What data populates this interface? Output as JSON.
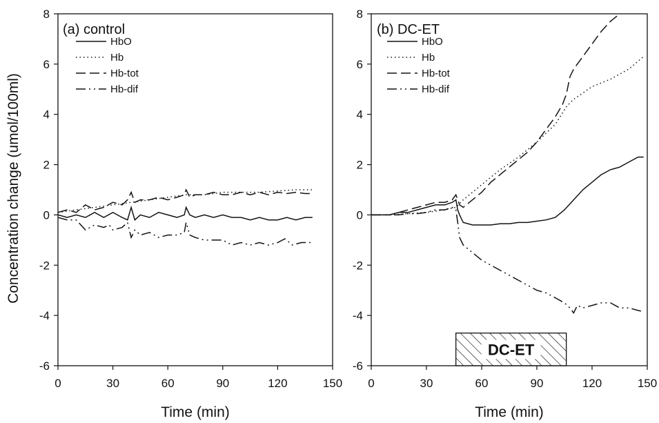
{
  "y_axis_label": "Concentration change (umol/100ml)",
  "panels": [
    {
      "id": "a",
      "title": "(a) control",
      "xlabel": "Time (min)",
      "xlim": [
        0,
        150
      ],
      "ylim": [
        -6,
        8
      ],
      "xticks": [
        0,
        30,
        60,
        90,
        120,
        150
      ],
      "yticks": [
        -6,
        -4,
        -2,
        0,
        2,
        4,
        6,
        8
      ],
      "legend": [
        "HbO",
        "Hb",
        "Hb-tot",
        "Hb-dif"
      ]
    },
    {
      "id": "b",
      "title": "(b) DC-ET",
      "xlabel": "Time (min)",
      "xlim": [
        0,
        150
      ],
      "ylim": [
        -6,
        8
      ],
      "xticks": [
        0,
        30,
        60,
        90,
        120,
        150
      ],
      "yticks": [
        -6,
        -4,
        -2,
        0,
        2,
        4,
        6,
        8
      ],
      "legend": [
        "HbO",
        "Hb",
        "Hb-tot",
        "Hb-dif"
      ],
      "stimulus": {
        "label": "DC-ET",
        "start": 46,
        "end": 106
      }
    }
  ],
  "chart_data": [
    {
      "type": "line",
      "title": "(a) control",
      "xlabel": "Time (min)",
      "ylabel": "Concentration change (umol/100ml)",
      "xlim": [
        0,
        150
      ],
      "ylim": [
        -6,
        8
      ],
      "grid": false,
      "legend_position": "top-left",
      "series": [
        {
          "name": "HbO",
          "style": "solid",
          "points": [
            [
              0,
              0.0
            ],
            [
              5,
              -0.1
            ],
            [
              10,
              0.0
            ],
            [
              15,
              -0.1
            ],
            [
              20,
              0.1
            ],
            [
              25,
              -0.1
            ],
            [
              30,
              0.1
            ],
            [
              35,
              -0.1
            ],
            [
              38,
              -0.2
            ],
            [
              40,
              0.3
            ],
            [
              42,
              -0.2
            ],
            [
              45,
              0.0
            ],
            [
              50,
              -0.1
            ],
            [
              55,
              0.1
            ],
            [
              60,
              0.0
            ],
            [
              65,
              -0.1
            ],
            [
              69,
              0.0
            ],
            [
              70,
              0.3
            ],
            [
              72,
              0.0
            ],
            [
              75,
              -0.1
            ],
            [
              80,
              0.0
            ],
            [
              85,
              -0.1
            ],
            [
              90,
              0.0
            ],
            [
              95,
              -0.1
            ],
            [
              100,
              -0.1
            ],
            [
              105,
              -0.2
            ],
            [
              110,
              -0.1
            ],
            [
              115,
              -0.2
            ],
            [
              120,
              -0.2
            ],
            [
              125,
              -0.1
            ],
            [
              130,
              -0.2
            ],
            [
              135,
              -0.1
            ],
            [
              139,
              -0.1
            ]
          ]
        },
        {
          "name": "Hb",
          "style": "dotted",
          "points": [
            [
              0,
              0.1
            ],
            [
              10,
              0.2
            ],
            [
              20,
              0.3
            ],
            [
              30,
              0.4
            ],
            [
              40,
              0.5
            ],
            [
              50,
              0.6
            ],
            [
              60,
              0.7
            ],
            [
              70,
              0.8
            ],
            [
              80,
              0.8
            ],
            [
              90,
              0.9
            ],
            [
              100,
              0.9
            ],
            [
              110,
              0.9
            ],
            [
              120,
              0.95
            ],
            [
              130,
              1.0
            ],
            [
              139,
              1.0
            ]
          ]
        },
        {
          "name": "Hb-tot",
          "style": "dashed",
          "points": [
            [
              0,
              0.1
            ],
            [
              5,
              0.2
            ],
            [
              10,
              0.1
            ],
            [
              15,
              0.4
            ],
            [
              20,
              0.2
            ],
            [
              25,
              0.3
            ],
            [
              30,
              0.5
            ],
            [
              35,
              0.4
            ],
            [
              38,
              0.6
            ],
            [
              40,
              0.9
            ],
            [
              42,
              0.5
            ],
            [
              45,
              0.6
            ],
            [
              50,
              0.6
            ],
            [
              55,
              0.7
            ],
            [
              60,
              0.6
            ],
            [
              65,
              0.7
            ],
            [
              69,
              0.8
            ],
            [
              70,
              1.0
            ],
            [
              72,
              0.7
            ],
            [
              75,
              0.8
            ],
            [
              80,
              0.8
            ],
            [
              85,
              0.9
            ],
            [
              90,
              0.8
            ],
            [
              95,
              0.8
            ],
            [
              100,
              0.9
            ],
            [
              105,
              0.8
            ],
            [
              110,
              0.9
            ],
            [
              115,
              0.8
            ],
            [
              120,
              0.9
            ],
            [
              125,
              0.85
            ],
            [
              130,
              0.9
            ],
            [
              135,
              0.85
            ],
            [
              139,
              0.85
            ]
          ]
        },
        {
          "name": "Hb-dif",
          "style": "dashdot",
          "points": [
            [
              0,
              -0.1
            ],
            [
              5,
              -0.2
            ],
            [
              10,
              -0.2
            ],
            [
              15,
              -0.6
            ],
            [
              20,
              -0.4
            ],
            [
              25,
              -0.5
            ],
            [
              28,
              -0.4
            ],
            [
              30,
              -0.6
            ],
            [
              35,
              -0.5
            ],
            [
              38,
              -0.3
            ],
            [
              40,
              -0.9
            ],
            [
              42,
              -0.6
            ],
            [
              45,
              -0.8
            ],
            [
              50,
              -0.7
            ],
            [
              55,
              -0.9
            ],
            [
              60,
              -0.8
            ],
            [
              65,
              -0.8
            ],
            [
              69,
              -0.7
            ],
            [
              70,
              -0.3
            ],
            [
              72,
              -0.8
            ],
            [
              75,
              -0.9
            ],
            [
              80,
              -1.0
            ],
            [
              85,
              -1.0
            ],
            [
              90,
              -1.0
            ],
            [
              95,
              -1.2
            ],
            [
              100,
              -1.1
            ],
            [
              105,
              -1.2
            ],
            [
              110,
              -1.1
            ],
            [
              115,
              -1.2
            ],
            [
              120,
              -1.1
            ],
            [
              124,
              -0.95
            ],
            [
              128,
              -1.2
            ],
            [
              133,
              -1.1
            ],
            [
              139,
              -1.1
            ]
          ]
        }
      ]
    },
    {
      "type": "line",
      "title": "(b) DC-ET",
      "xlabel": "Time (min)",
      "ylabel": "Concentration change (umol/100ml)",
      "xlim": [
        0,
        150
      ],
      "ylim": [
        -6,
        8
      ],
      "grid": false,
      "legend_position": "top-left",
      "annotation": {
        "label": "DC-ET",
        "x_start": 46,
        "x_end": 106
      },
      "series": [
        {
          "name": "HbO",
          "style": "solid",
          "points": [
            [
              0,
              0.0
            ],
            [
              5,
              0.0
            ],
            [
              10,
              0.0
            ],
            [
              15,
              0.1
            ],
            [
              20,
              0.1
            ],
            [
              25,
              0.2
            ],
            [
              30,
              0.3
            ],
            [
              35,
              0.4
            ],
            [
              40,
              0.4
            ],
            [
              44,
              0.5
            ],
            [
              46,
              0.6
            ],
            [
              47,
              0.2
            ],
            [
              48,
              0.0
            ],
            [
              50,
              -0.3
            ],
            [
              55,
              -0.4
            ],
            [
              60,
              -0.4
            ],
            [
              65,
              -0.4
            ],
            [
              70,
              -0.35
            ],
            [
              75,
              -0.35
            ],
            [
              80,
              -0.3
            ],
            [
              85,
              -0.3
            ],
            [
              90,
              -0.25
            ],
            [
              95,
              -0.2
            ],
            [
              100,
              -0.1
            ],
            [
              105,
              0.2
            ],
            [
              110,
              0.6
            ],
            [
              115,
              1.0
            ],
            [
              120,
              1.3
            ],
            [
              125,
              1.6
            ],
            [
              130,
              1.8
            ],
            [
              135,
              1.9
            ],
            [
              140,
              2.1
            ],
            [
              145,
              2.3
            ],
            [
              148,
              2.3
            ]
          ]
        },
        {
          "name": "Hb",
          "style": "dotted",
          "points": [
            [
              0,
              0.0
            ],
            [
              10,
              0.0
            ],
            [
              20,
              0.05
            ],
            [
              30,
              0.1
            ],
            [
              40,
              0.2
            ],
            [
              46,
              0.3
            ],
            [
              50,
              0.6
            ],
            [
              60,
              1.2
            ],
            [
              70,
              1.8
            ],
            [
              80,
              2.3
            ],
            [
              90,
              2.9
            ],
            [
              100,
              3.6
            ],
            [
              106,
              4.3
            ],
            [
              110,
              4.6
            ],
            [
              120,
              5.1
            ],
            [
              130,
              5.4
            ],
            [
              140,
              5.8
            ],
            [
              148,
              6.3
            ]
          ]
        },
        {
          "name": "Hb-tot",
          "style": "dashed",
          "points": [
            [
              0,
              0.0
            ],
            [
              5,
              0.0
            ],
            [
              10,
              0.0
            ],
            [
              15,
              0.1
            ],
            [
              20,
              0.2
            ],
            [
              25,
              0.3
            ],
            [
              30,
              0.4
            ],
            [
              35,
              0.5
            ],
            [
              40,
              0.5
            ],
            [
              44,
              0.6
            ],
            [
              46,
              0.8
            ],
            [
              48,
              0.4
            ],
            [
              50,
              0.3
            ],
            [
              55,
              0.6
            ],
            [
              60,
              0.9
            ],
            [
              65,
              1.3
            ],
            [
              70,
              1.6
            ],
            [
              75,
              1.9
            ],
            [
              80,
              2.2
            ],
            [
              85,
              2.5
            ],
            [
              90,
              2.9
            ],
            [
              95,
              3.4
            ],
            [
              100,
              3.9
            ],
            [
              104,
              4.4
            ],
            [
              106,
              4.8
            ],
            [
              108,
              5.5
            ],
            [
              110,
              5.8
            ],
            [
              115,
              6.3
            ],
            [
              120,
              6.8
            ],
            [
              125,
              7.3
            ],
            [
              130,
              7.7
            ],
            [
              135,
              8.0
            ]
          ]
        },
        {
          "name": "Hb-dif",
          "style": "dashdot",
          "points": [
            [
              0,
              0.0
            ],
            [
              5,
              0.0
            ],
            [
              10,
              0.0
            ],
            [
              15,
              0.0
            ],
            [
              20,
              0.05
            ],
            [
              25,
              0.05
            ],
            [
              30,
              0.1
            ],
            [
              35,
              0.2
            ],
            [
              40,
              0.2
            ],
            [
              44,
              0.3
            ],
            [
              46,
              0.2
            ],
            [
              47,
              -0.3
            ],
            [
              48,
              -0.9
            ],
            [
              50,
              -1.2
            ],
            [
              55,
              -1.5
            ],
            [
              60,
              -1.8
            ],
            [
              65,
              -2.0
            ],
            [
              70,
              -2.2
            ],
            [
              75,
              -2.4
            ],
            [
              80,
              -2.6
            ],
            [
              85,
              -2.8
            ],
            [
              90,
              -3.0
            ],
            [
              95,
              -3.1
            ],
            [
              100,
              -3.3
            ],
            [
              105,
              -3.5
            ],
            [
              108,
              -3.7
            ],
            [
              110,
              -3.9
            ],
            [
              112,
              -3.6
            ],
            [
              115,
              -3.7
            ],
            [
              120,
              -3.6
            ],
            [
              125,
              -3.5
            ],
            [
              130,
              -3.5
            ],
            [
              135,
              -3.7
            ],
            [
              140,
              -3.7
            ],
            [
              145,
              -3.8
            ],
            [
              148,
              -3.85
            ]
          ]
        }
      ]
    }
  ]
}
